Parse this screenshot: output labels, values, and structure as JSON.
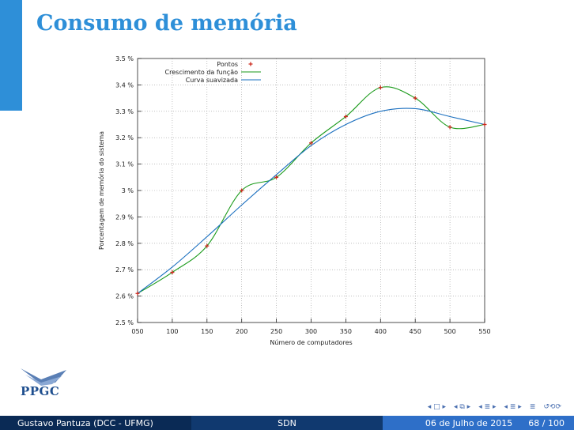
{
  "slide": {
    "title": "Consumo de memória"
  },
  "chart_data": {
    "type": "line",
    "title": "",
    "xlabel": "Número de computadores",
    "ylabel": "Porcentagem de memória do sistema",
    "x_ticks": [
      "050",
      "100",
      "150",
      "200",
      "250",
      "300",
      "350",
      "400",
      "450",
      "500",
      "550"
    ],
    "y_ticks": [
      "2.5 %",
      "2.6 %",
      "2.7 %",
      "2.8 %",
      "2.9 %",
      "3 %",
      "3.1 %",
      "3.2 %",
      "3.3 %",
      "3.4 %",
      "3.5 %"
    ],
    "xlim": [
      50,
      550
    ],
    "ylim": [
      2.5,
      3.5
    ],
    "grid": true,
    "legend_position": "top-right",
    "series": [
      {
        "name": "Pontos",
        "style": "points",
        "color": "#cc2a1e",
        "x": [
          50,
          100,
          150,
          200,
          250,
          300,
          350,
          400,
          450,
          500,
          550
        ],
        "y": [
          2.61,
          2.69,
          2.79,
          3.0,
          3.05,
          3.18,
          3.28,
          3.39,
          3.35,
          3.24,
          3.25
        ]
      },
      {
        "name": "Crescimento da função",
        "style": "line",
        "color": "#1a9a1a",
        "x": [
          50,
          100,
          150,
          200,
          250,
          300,
          350,
          400,
          450,
          500,
          550
        ],
        "y": [
          2.61,
          2.69,
          2.79,
          3.0,
          3.05,
          3.18,
          3.28,
          3.39,
          3.35,
          3.24,
          3.25
        ]
      },
      {
        "name": "Curva suavizada",
        "style": "line",
        "color": "#1a6fbf",
        "x": [
          50,
          100,
          150,
          200,
          250,
          300,
          350,
          400,
          450,
          500,
          550
        ],
        "y": [
          2.61,
          2.71,
          2.825,
          2.945,
          3.06,
          3.17,
          3.25,
          3.3,
          3.31,
          3.28,
          3.25
        ]
      }
    ]
  },
  "footer": {
    "author": "Gustavo Pantuza (DCC - UFMG)",
    "short_title": "SDN",
    "date": "06 de Julho de 2015",
    "page": "68 / 100"
  },
  "logo": {
    "text": "PPGC"
  },
  "nav": {
    "symbols": [
      "◂ □ ▸",
      "◂ ⧉ ▸",
      "◂ ≣ ▸",
      "◂ ≣ ▸",
      "≣",
      "↺⟲⟳"
    ]
  }
}
